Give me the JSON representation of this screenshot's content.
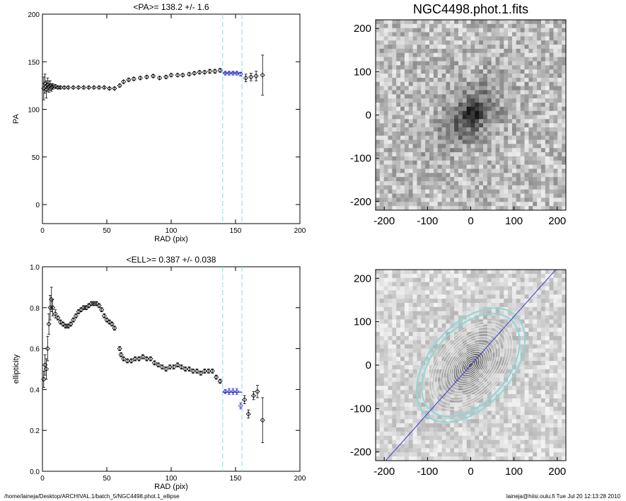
{
  "footer": {
    "path": "/home/laineja/Desktop/ARCHIVAL.1/batch_5/NGC4498.phot.1_ellipse",
    "stamp": "laineja@hiisi.oulu.fi  Tue Jul 20 12:13:28 2010"
  },
  "colors": {
    "marker": "#000000",
    "selected_marker": "#3b3bc8",
    "fit_line": "#2a2ab4",
    "range_line": "#7ee0e0",
    "major_axis": "#3a3ad8",
    "isophote": "#e8e8e8",
    "outer_isophote": "#8fd6d6"
  },
  "chart_data": [
    {
      "id": "pa",
      "type": "scatter",
      "title": "<PA>= 138.2 +/-   1.6",
      "xlabel": "RAD (pix)",
      "ylabel": "PA",
      "xlim": [
        0,
        200
      ],
      "ylim": [
        -20,
        200
      ],
      "xticks": [
        0,
        50,
        100,
        150,
        200
      ],
      "yticks": [
        0,
        50,
        100,
        150,
        200
      ],
      "range_lines": [
        140,
        155
      ],
      "fit": {
        "x": [
          140,
          155
        ],
        "y": 138.2
      },
      "points": [
        {
          "x": 1,
          "y": 122,
          "err": 12
        },
        {
          "x": 2,
          "y": 127,
          "err": 10
        },
        {
          "x": 3,
          "y": 121,
          "err": 9
        },
        {
          "x": 4,
          "y": 126,
          "err": 7
        },
        {
          "x": 5,
          "y": 124,
          "err": 6
        },
        {
          "x": 6,
          "y": 125,
          "err": 5
        },
        {
          "x": 7,
          "y": 123,
          "err": 4
        },
        {
          "x": 8,
          "y": 124,
          "err": 3
        },
        {
          "x": 10,
          "y": 124,
          "err": 2
        },
        {
          "x": 12,
          "y": 123,
          "err": 1.5
        },
        {
          "x": 14,
          "y": 123,
          "err": 1.2
        },
        {
          "x": 17,
          "y": 123,
          "err": 1
        },
        {
          "x": 20,
          "y": 123,
          "err": 1
        },
        {
          "x": 24,
          "y": 123,
          "err": 1
        },
        {
          "x": 28,
          "y": 123,
          "err": 1
        },
        {
          "x": 32,
          "y": 123,
          "err": 1
        },
        {
          "x": 36,
          "y": 123,
          "err": 1
        },
        {
          "x": 40,
          "y": 123,
          "err": 1
        },
        {
          "x": 44,
          "y": 123,
          "err": 1
        },
        {
          "x": 48,
          "y": 123,
          "err": 1
        },
        {
          "x": 52,
          "y": 122,
          "err": 1
        },
        {
          "x": 56,
          "y": 122,
          "err": 1
        },
        {
          "x": 60,
          "y": 125,
          "err": 1.5
        },
        {
          "x": 63,
          "y": 129,
          "err": 1.5
        },
        {
          "x": 67,
          "y": 131,
          "err": 1.5
        },
        {
          "x": 71,
          "y": 132,
          "err": 1.5
        },
        {
          "x": 76,
          "y": 133,
          "err": 1.5
        },
        {
          "x": 81,
          "y": 134,
          "err": 1.5
        },
        {
          "x": 86,
          "y": 135,
          "err": 1.5
        },
        {
          "x": 91,
          "y": 133,
          "err": 1.5
        },
        {
          "x": 96,
          "y": 134,
          "err": 1.5
        },
        {
          "x": 100,
          "y": 136,
          "err": 1.5
        },
        {
          "x": 105,
          "y": 136,
          "err": 1.5
        },
        {
          "x": 109,
          "y": 136,
          "err": 1.5
        },
        {
          "x": 114,
          "y": 137,
          "err": 1.5
        },
        {
          "x": 118,
          "y": 138,
          "err": 1.5
        },
        {
          "x": 122,
          "y": 139,
          "err": 1.5
        },
        {
          "x": 126,
          "y": 139,
          "err": 1.5
        },
        {
          "x": 130,
          "y": 140,
          "err": 2
        },
        {
          "x": 134,
          "y": 140,
          "err": 2
        },
        {
          "x": 138,
          "y": 141,
          "err": 2
        },
        {
          "x": 142,
          "y": 138,
          "err": 2
        },
        {
          "x": 145,
          "y": 138,
          "err": 2
        },
        {
          "x": 148,
          "y": 138,
          "err": 2
        },
        {
          "x": 151,
          "y": 138,
          "err": 2
        },
        {
          "x": 154,
          "y": 137,
          "err": 2
        },
        {
          "x": 158,
          "y": 133,
          "err": 4
        },
        {
          "x": 162,
          "y": 134,
          "err": 4
        },
        {
          "x": 166,
          "y": 135,
          "err": 5
        },
        {
          "x": 171,
          "y": 136,
          "err": 21
        }
      ]
    },
    {
      "id": "ell",
      "type": "scatter",
      "title": "<ELL>= 0.387 +/-  0.038",
      "xlabel": "RAD (pix)",
      "ylabel": "ellipticity",
      "xlim": [
        0,
        200
      ],
      "ylim": [
        0.0,
        1.0
      ],
      "xticks": [
        0,
        50,
        100,
        150,
        200
      ],
      "yticks": [
        0.0,
        0.2,
        0.4,
        0.6,
        0.8,
        1.0
      ],
      "range_lines": [
        140,
        155
      ],
      "fit": {
        "x": [
          140,
          155
        ],
        "y": 0.387
      },
      "points": [
        {
          "x": 1,
          "y": 0.45,
          "err": 0.04
        },
        {
          "x": 2,
          "y": 0.52,
          "err": 0.05
        },
        {
          "x": 3,
          "y": 0.5,
          "err": 0.05
        },
        {
          "x": 4,
          "y": 0.6,
          "err": 0.06
        },
        {
          "x": 5,
          "y": 0.72,
          "err": 0.05
        },
        {
          "x": 6,
          "y": 0.8,
          "err": 0.06
        },
        {
          "x": 7,
          "y": 0.84,
          "err": 0.06
        },
        {
          "x": 8,
          "y": 0.8,
          "err": 0.04
        },
        {
          "x": 10,
          "y": 0.77,
          "err": 0.02
        },
        {
          "x": 12,
          "y": 0.75,
          "err": 0.01
        },
        {
          "x": 14,
          "y": 0.73,
          "err": 0.01
        },
        {
          "x": 16,
          "y": 0.72,
          "err": 0.01
        },
        {
          "x": 18,
          "y": 0.71,
          "err": 0.01
        },
        {
          "x": 20,
          "y": 0.71,
          "err": 0.01
        },
        {
          "x": 22,
          "y": 0.72,
          "err": 0.01
        },
        {
          "x": 24,
          "y": 0.74,
          "err": 0.01
        },
        {
          "x": 26,
          "y": 0.76,
          "err": 0.01
        },
        {
          "x": 28,
          "y": 0.78,
          "err": 0.01
        },
        {
          "x": 30,
          "y": 0.79,
          "err": 0.01
        },
        {
          "x": 32,
          "y": 0.8,
          "err": 0.01
        },
        {
          "x": 34,
          "y": 0.8,
          "err": 0.01
        },
        {
          "x": 36,
          "y": 0.81,
          "err": 0.01
        },
        {
          "x": 38,
          "y": 0.82,
          "err": 0.01
        },
        {
          "x": 40,
          "y": 0.82,
          "err": 0.01
        },
        {
          "x": 42,
          "y": 0.82,
          "err": 0.01
        },
        {
          "x": 44,
          "y": 0.81,
          "err": 0.01
        },
        {
          "x": 46,
          "y": 0.79,
          "err": 0.01
        },
        {
          "x": 48,
          "y": 0.76,
          "err": 0.01
        },
        {
          "x": 50,
          "y": 0.74,
          "err": 0.01
        },
        {
          "x": 52,
          "y": 0.73,
          "err": 0.01
        },
        {
          "x": 54,
          "y": 0.72,
          "err": 0.01
        },
        {
          "x": 56,
          "y": 0.7,
          "err": 0.01
        },
        {
          "x": 60,
          "y": 0.6,
          "err": 0.01
        },
        {
          "x": 61,
          "y": 0.57,
          "err": 0.01
        },
        {
          "x": 63,
          "y": 0.55,
          "err": 0.01
        },
        {
          "x": 66,
          "y": 0.54,
          "err": 0.01
        },
        {
          "x": 69,
          "y": 0.54,
          "err": 0.01
        },
        {
          "x": 72,
          "y": 0.55,
          "err": 0.01
        },
        {
          "x": 75,
          "y": 0.55,
          "err": 0.01
        },
        {
          "x": 78,
          "y": 0.56,
          "err": 0.01
        },
        {
          "x": 81,
          "y": 0.55,
          "err": 0.01
        },
        {
          "x": 84,
          "y": 0.55,
          "err": 0.01
        },
        {
          "x": 87,
          "y": 0.53,
          "err": 0.01
        },
        {
          "x": 90,
          "y": 0.52,
          "err": 0.01
        },
        {
          "x": 93,
          "y": 0.51,
          "err": 0.01
        },
        {
          "x": 96,
          "y": 0.5,
          "err": 0.01
        },
        {
          "x": 99,
          "y": 0.51,
          "err": 0.01
        },
        {
          "x": 102,
          "y": 0.51,
          "err": 0.01
        },
        {
          "x": 105,
          "y": 0.52,
          "err": 0.01
        },
        {
          "x": 108,
          "y": 0.51,
          "err": 0.01
        },
        {
          "x": 111,
          "y": 0.5,
          "err": 0.01
        },
        {
          "x": 114,
          "y": 0.5,
          "err": 0.01
        },
        {
          "x": 117,
          "y": 0.49,
          "err": 0.01
        },
        {
          "x": 120,
          "y": 0.49,
          "err": 0.01
        },
        {
          "x": 123,
          "y": 0.48,
          "err": 0.01
        },
        {
          "x": 126,
          "y": 0.49,
          "err": 0.01
        },
        {
          "x": 129,
          "y": 0.49,
          "err": 0.01
        },
        {
          "x": 132,
          "y": 0.49,
          "err": 0.01
        },
        {
          "x": 135,
          "y": 0.46,
          "err": 0.01
        },
        {
          "x": 138,
          "y": 0.44,
          "err": 0.01
        },
        {
          "x": 142,
          "y": 0.39,
          "err": 0.01
        },
        {
          "x": 145,
          "y": 0.39,
          "err": 0.015
        },
        {
          "x": 148,
          "y": 0.39,
          "err": 0.015
        },
        {
          "x": 151,
          "y": 0.39,
          "err": 0.015
        },
        {
          "x": 154,
          "y": 0.32,
          "err": 0.015
        },
        {
          "x": 157,
          "y": 0.35,
          "err": 0.02
        },
        {
          "x": 160,
          "y": 0.28,
          "err": 0.02
        },
        {
          "x": 164,
          "y": 0.37,
          "err": 0.02
        },
        {
          "x": 167,
          "y": 0.39,
          "err": 0.03
        },
        {
          "x": 171,
          "y": 0.25,
          "err": 0.11
        }
      ]
    },
    {
      "id": "image",
      "type": "heatmap",
      "title": "NGC4498.phot.1.fits",
      "xlim": [
        -220,
        220
      ],
      "ylim": [
        -220,
        220
      ],
      "xticks": [
        -200,
        -100,
        0,
        100,
        200
      ],
      "yticks": [
        -200,
        -100,
        0,
        100,
        200
      ],
      "colormap": "inverted grayscale",
      "galaxy": {
        "center": [
          0,
          0
        ],
        "major_radius": 115,
        "axis_ratio": 0.6,
        "position_angle": 138
      }
    },
    {
      "id": "isophotes",
      "type": "heatmap",
      "xlim": [
        -220,
        220
      ],
      "ylim": [
        -220,
        220
      ],
      "xticks": [
        -200,
        -100,
        0,
        100,
        200
      ],
      "yticks": [
        -200,
        -100,
        0,
        100,
        200
      ],
      "colormap": "inverted grayscale",
      "isophote_radii": [
        8,
        14,
        20,
        26,
        32,
        38,
        44,
        50,
        56,
        62,
        70,
        78,
        86,
        95,
        104,
        112,
        120
      ],
      "outer_isophote_radii": [
        140,
        155
      ],
      "isophote_axis_ratio": 0.613,
      "position_angle": 138.2
    }
  ]
}
